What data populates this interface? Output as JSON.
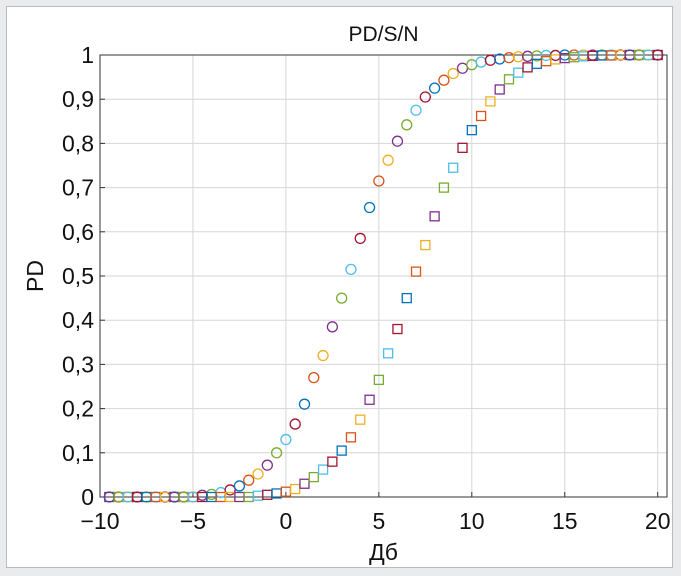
{
  "chart_data": {
    "type": "scatter",
    "title": "PD/S/N",
    "xlabel": "Дб",
    "ylabel": "PD",
    "xlim": [
      -10,
      20.5
    ],
    "ylim": [
      0,
      1
    ],
    "grid": true,
    "legend": "none",
    "x_ticks": [
      -10,
      -5,
      0,
      5,
      10,
      15,
      20
    ],
    "x_tick_labels": [
      "−10",
      "−5",
      "0",
      "5",
      "10",
      "15",
      "20"
    ],
    "y_ticks": [
      0,
      0.1,
      0.2,
      0.3,
      0.4,
      0.5,
      0.6,
      0.7,
      0.8,
      0.9,
      1
    ],
    "y_tick_labels": [
      "0",
      "0,1",
      "0,2",
      "0,3",
      "0,4",
      "0,5",
      "0,6",
      "0,7",
      "0,8",
      "0,9",
      "1"
    ],
    "colors": [
      "#0072bd",
      "#d95319",
      "#edb120",
      "#7e2f8e",
      "#77ac30",
      "#4dbeee",
      "#a2142f"
    ],
    "series": [
      {
        "marker": "circle",
        "x": [
          -9.5,
          -9,
          -8.5,
          -8,
          -7.5,
          -7,
          -6.5,
          -6,
          -5.5,
          -5,
          -4.5,
          -4,
          -3.5,
          -3,
          -2.5,
          -2,
          -1.5,
          -1,
          -0.5,
          0,
          0.5,
          1,
          1.5,
          2,
          2.5,
          3,
          3.5,
          4,
          4.5,
          5,
          5.5,
          6,
          6.5,
          7,
          7.5,
          8,
          8.5,
          9,
          9.5,
          10,
          10.5,
          11,
          11.5,
          12,
          12.5,
          13,
          13.5,
          14,
          14.5,
          15,
          15.5,
          16,
          16.5,
          17,
          17.5,
          18,
          18.5,
          19,
          19.5,
          20
        ],
        "y": [
          0,
          0,
          0,
          0,
          0,
          0,
          0,
          0,
          0,
          0,
          0.004,
          0.006,
          0.01,
          0.016,
          0.025,
          0.038,
          0.052,
          0.072,
          0.1,
          0.13,
          0.165,
          0.21,
          0.27,
          0.32,
          0.385,
          0.45,
          0.515,
          0.585,
          0.655,
          0.715,
          0.762,
          0.805,
          0.842,
          0.875,
          0.905,
          0.925,
          0.943,
          0.958,
          0.97,
          0.978,
          0.984,
          0.988,
          0.991,
          0.994,
          0.996,
          0.997,
          0.998,
          0.999,
          0.999,
          1,
          1,
          1,
          1,
          1,
          1,
          1,
          1,
          1,
          1,
          1
        ]
      },
      {
        "marker": "square",
        "x": [
          -9.5,
          -9,
          -8.5,
          -8,
          -7.5,
          -7,
          -6.5,
          -6,
          -5.5,
          -5,
          -4.5,
          -4,
          -3.5,
          -3,
          -2.5,
          -2,
          -1.5,
          -1,
          -0.5,
          0,
          0.5,
          1,
          1.5,
          2,
          2.5,
          3,
          3.5,
          4,
          4.5,
          5,
          5.5,
          6,
          6.5,
          7,
          7.5,
          8,
          8.5,
          9,
          9.5,
          10,
          10.5,
          11,
          11.5,
          12,
          12.5,
          13,
          13.5,
          14,
          14.5,
          15,
          15.5,
          16,
          16.5,
          17,
          17.5,
          18,
          18.5,
          19,
          19.5,
          20
        ],
        "y": [
          0,
          0,
          0,
          0,
          0,
          0,
          0,
          0,
          0,
          0,
          0,
          0,
          0,
          0,
          0,
          0,
          0.003,
          0.005,
          0.008,
          0.012,
          0.018,
          0.03,
          0.045,
          0.062,
          0.08,
          0.105,
          0.135,
          0.175,
          0.22,
          0.265,
          0.325,
          0.38,
          0.45,
          0.51,
          0.57,
          0.635,
          0.7,
          0.745,
          0.79,
          0.83,
          0.862,
          0.895,
          0.922,
          0.945,
          0.96,
          0.972,
          0.98,
          0.986,
          0.99,
          0.993,
          0.995,
          0.997,
          0.998,
          0.999,
          0.999,
          1,
          1,
          1,
          1,
          1
        ]
      }
    ]
  }
}
